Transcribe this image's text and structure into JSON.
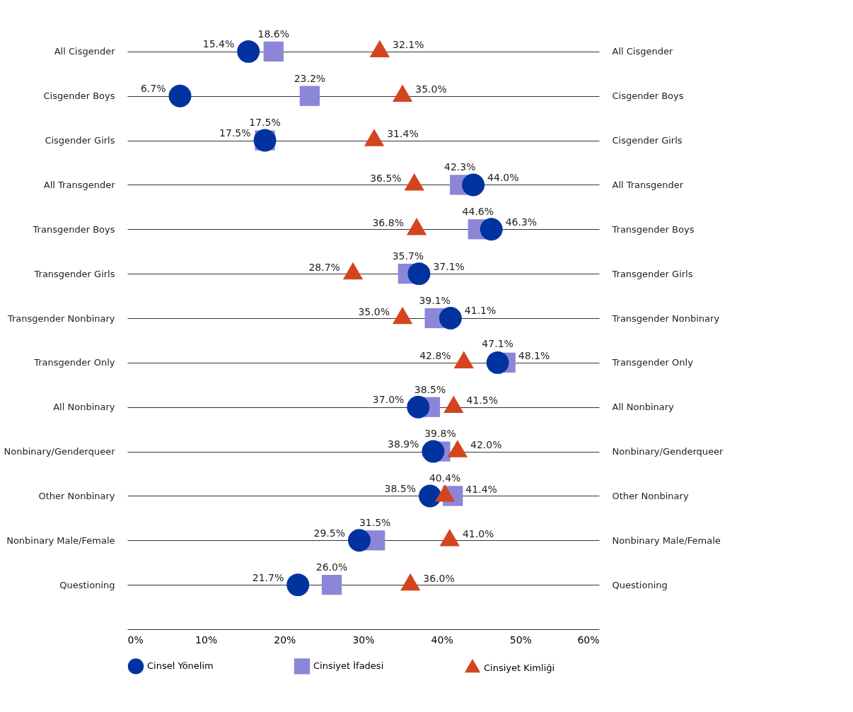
{
  "chart_data": {
    "type": "scatter",
    "categories": [
      "All Cisgender",
      "Cisgender Boys",
      "Cisgender Girls",
      "All Transgender",
      "Transgender Boys",
      "Transgender Girls",
      "Transgender Nonbinary",
      "Transgender Only",
      "All Nonbinary",
      "Nonbinary/Genderqueer",
      "Other Nonbinary",
      "Nonbinary Male/Female",
      "Questioning"
    ],
    "series": [
      {
        "name": "Cinsel Yönelim",
        "color": "#0033a0",
        "marker": "circle",
        "values": [
          15.4,
          6.7,
          17.5,
          44.0,
          46.3,
          37.1,
          41.1,
          47.1,
          37.0,
          38.9,
          38.5,
          29.5,
          21.7
        ],
        "value_labels": [
          "15.4%",
          "6.7%",
          "17.5%",
          "44.0%",
          "46.3%",
          "37.1%",
          "41.1%",
          "47.1%",
          "37.0%",
          "38.9%",
          "38.5%",
          "29.5%",
          "21.7%"
        ]
      },
      {
        "name": "Cinsiyet İfadesi",
        "color": "#8b86d8",
        "marker": "square",
        "values": [
          18.6,
          23.2,
          17.5,
          42.3,
          44.6,
          35.7,
          39.1,
          48.1,
          38.5,
          39.8,
          41.4,
          31.5,
          26.0
        ],
        "value_labels": [
          "18.6%",
          "23.2%",
          "17.5%",
          "42.3%",
          "44.6%",
          "35.7%",
          "39.1%",
          "48.1%",
          "38.5%",
          "39.8%",
          "41.4%",
          "31.5%",
          "26.0%"
        ]
      },
      {
        "name": "Cinsiyet Kimliği",
        "color": "#d4451f",
        "marker": "triangle",
        "values": [
          32.1,
          35.0,
          31.4,
          36.5,
          36.8,
          28.7,
          35.0,
          42.8,
          41.5,
          42.0,
          40.4,
          41.0,
          36.0
        ],
        "value_labels": [
          "32.1%",
          "35.0%",
          "31.4%",
          "36.5%",
          "36.8%",
          "28.7%",
          "35.0%",
          "42.8%",
          "41.5%",
          "42.0%",
          "40.4%",
          "41.0%",
          "36.0%"
        ]
      }
    ],
    "xlim": [
      0,
      60
    ],
    "xticks": [
      {
        "value": 0,
        "label": "0%"
      },
      {
        "value": 10,
        "label": "10%"
      },
      {
        "value": 20,
        "label": "20%"
      },
      {
        "value": 30,
        "label": "30%"
      },
      {
        "value": 40,
        "label": "40%"
      },
      {
        "value": 50,
        "label": "50%"
      },
      {
        "value": 60,
        "label": "60%"
      }
    ],
    "grid": "y",
    "legend": "bottom",
    "orientation": "horizontal"
  }
}
